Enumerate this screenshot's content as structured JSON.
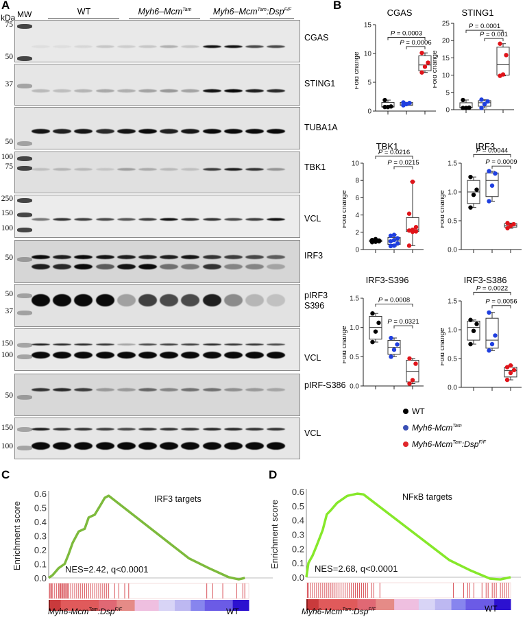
{
  "figure": {
    "panels": {
      "A": "A",
      "B": "B",
      "C": "C",
      "D": "D"
    }
  },
  "panel_a": {
    "kda_label": "kDa",
    "mw_label": "MW",
    "groups": [
      {
        "label": "WT",
        "italic": false,
        "sup": "",
        "suffix": "",
        "suffix_sup": ""
      },
      {
        "label": "Myh6–Mcm",
        "italic": true,
        "sup": "Tam",
        "suffix": "",
        "suffix_sup": ""
      },
      {
        "label": "Myh6–Mcm",
        "italic": true,
        "sup": "Tam",
        "suffix": ":Dsp",
        "suffix_sup": "F/F"
      }
    ],
    "blots": [
      {
        "protein": "CGAS",
        "markers": [
          "75",
          "50"
        ]
      },
      {
        "protein": "STING1",
        "markers": [
          "37"
        ]
      },
      {
        "protein": "TUBA1A",
        "markers": [
          "50"
        ]
      },
      {
        "protein": "TBK1",
        "markers": [
          "100",
          "75"
        ]
      },
      {
        "protein": "VCL",
        "markers": [
          "250",
          "150",
          "100"
        ]
      },
      {
        "protein": "IRF3",
        "markers": [
          "50"
        ]
      },
      {
        "protein": "pIRF3\nS396",
        "protein_line1": "pIRF3",
        "protein_line2": "S396",
        "markers": [
          "50",
          "37"
        ]
      },
      {
        "protein": "VCL",
        "markers": [
          "150",
          "100"
        ]
      },
      {
        "protein": "pIRF-S386",
        "markers": [
          "50"
        ]
      },
      {
        "protein": "VCL",
        "markers": [
          "150",
          "100"
        ]
      }
    ]
  },
  "legend": {
    "items": [
      {
        "label": "WT",
        "color": "#000000"
      },
      {
        "label": "Myh6-Mcm",
        "sup": "Tam",
        "color": "#3a4fb5"
      },
      {
        "label": "Myh6-Mcm",
        "sup": "Tam",
        "suffix": ":Dsp",
        "suffix_sup": "F/F",
        "color": "#e0262a"
      }
    ]
  },
  "gsea": {
    "C": {
      "title": "IRF3 targets",
      "stat": "NES=2.42, q<0.0001",
      "ylabel": "Enrichment score",
      "left_group": "Myh6-Mcm",
      "left_sup1": "Tam",
      "left_suffix": ":Dsp",
      "left_sup2": "F/F",
      "right_group": "WT"
    },
    "D": {
      "title": "NFκB targets",
      "stat": "NES=2.68, q<0.0001",
      "ylabel": "Enrichment score",
      "left_group": "Myh6-Mcm",
      "left_sup1": "Tam",
      "left_suffix": ":Dsp",
      "left_sup2": "F/F",
      "right_group": "WT"
    }
  },
  "colors": {
    "wt": "#000000",
    "mcm": "#1f3fe0",
    "dsp": "#e0141a",
    "gsea_c_curve": "#7dba3c",
    "gsea_d_curve": "#86e82a",
    "hit_line": "#d9545b"
  },
  "chart_data": [
    {
      "type": "box",
      "title": "CGAS",
      "ylabel": "Fold change",
      "ylim": [
        0,
        15
      ],
      "yticks": [
        0,
        5,
        10,
        15
      ],
      "categories": [
        "WT",
        "Myh6-Mcm Tam",
        "Myh6-Mcm Tam:Dsp F/F"
      ],
      "series": [
        {
          "name": "WT",
          "values": [
            0.7,
            0.7,
            0.8,
            1.9
          ],
          "box": {
            "min": 0.7,
            "q1": 0.7,
            "median": 0.75,
            "q3": 1.5,
            "max": 1.9
          }
        },
        {
          "name": "Myh6-Mcm Tam",
          "values": [
            1.0,
            1.2,
            1.4,
            1.5
          ],
          "box": {
            "min": 1.0,
            "q1": 1.0,
            "median": 1.2,
            "q3": 1.5,
            "max": 1.5
          }
        },
        {
          "name": "Myh6-Mcm Tam:Dsp F/F",
          "values": [
            6.7,
            7.7,
            8.4,
            10.1
          ],
          "box": {
            "min": 6.7,
            "q1": 7.0,
            "median": 8.0,
            "q3": 9.6,
            "max": 10.1
          }
        }
      ],
      "annotations": [
        {
          "label": "P = 0.0003",
          "from": 0,
          "to": 2,
          "y": 12.8
        },
        {
          "label": "P = 0.0006",
          "from": 1,
          "to": 2,
          "y": 11.2
        }
      ]
    },
    {
      "type": "box",
      "title": "STING1",
      "ylabel": "Fold change",
      "ylim": [
        0,
        25
      ],
      "yticks": [
        0,
        5,
        10,
        15,
        20,
        25
      ],
      "categories": [
        "WT",
        "Myh6-Mcm Tam",
        "Myh6-Mcm Tam:Dsp F/F"
      ],
      "series": [
        {
          "name": "WT",
          "values": [
            0.5,
            0.5,
            0.6,
            2.8
          ],
          "box": {
            "min": 0.5,
            "q1": 0.5,
            "median": 0.6,
            "q3": 2.0,
            "max": 2.8
          }
        },
        {
          "name": "Myh6-Mcm Tam",
          "values": [
            0.5,
            1.6,
            2.4,
            2.9
          ],
          "box": {
            "min": 0.5,
            "q1": 1.0,
            "median": 2.0,
            "q3": 2.6,
            "max": 2.9
          }
        },
        {
          "name": "Myh6-Mcm Tam:Dsp F/F",
          "values": [
            9.8,
            10.2,
            15.8,
            19.1
          ],
          "box": {
            "min": 9.8,
            "q1": 10.0,
            "median": 13.0,
            "q3": 18.1,
            "max": 19.1
          }
        }
      ],
      "annotations": [
        {
          "label": "P = 0.0001",
          "from": 0,
          "to": 2,
          "y": 23.0
        },
        {
          "label": "P = 0.001",
          "from": 1,
          "to": 2,
          "y": 20.6
        }
      ]
    },
    {
      "type": "box",
      "title": "TBK1",
      "ylabel": "Fold change",
      "ylim": [
        0,
        10
      ],
      "yticks": [
        0,
        2,
        4,
        6,
        8,
        10
      ],
      "categories": [
        "WT",
        "Myh6-Mcm Tam",
        "Myh6-Mcm Tam:Dsp F/F"
      ],
      "series": [
        {
          "name": "WT",
          "values": [
            0.85,
            0.9,
            0.95,
            1.0,
            1.0,
            1.05,
            1.1,
            1.2
          ],
          "box": {
            "min": 0.85,
            "q1": 0.9,
            "median": 1.0,
            "q3": 1.1,
            "max": 1.2
          }
        },
        {
          "name": "Myh6-Mcm Tam",
          "values": [
            0.4,
            0.45,
            0.7,
            0.95,
            1.1,
            1.3,
            1.6,
            1.7
          ],
          "box": {
            "min": 0.4,
            "q1": 0.6,
            "median": 1.0,
            "q3": 1.4,
            "max": 1.7
          }
        },
        {
          "name": "Myh6-Mcm Tam:Dsp F/F",
          "values": [
            0.45,
            2.05,
            2.1,
            2.2,
            2.3,
            2.6,
            4.15,
            7.85
          ],
          "box": {
            "min": 0.45,
            "q1": 2.1,
            "median": 2.3,
            "q3": 3.7,
            "max": 7.85
          }
        }
      ],
      "annotations": [
        {
          "label": "P = 0.0216",
          "from": 0,
          "to": 2,
          "y": 10.8
        },
        {
          "label": "P = 0.0215",
          "from": 1,
          "to": 2,
          "y": 9.6
        }
      ]
    },
    {
      "type": "box",
      "title": "IRF3",
      "ylabel": "Fold change",
      "ylim": [
        0,
        1.5
      ],
      "yticks": [
        0.0,
        0.5,
        1.0,
        1.5
      ],
      "categories": [
        "WT",
        "Myh6-Mcm Tam",
        "Myh6-Mcm Tam:Dsp F/F"
      ],
      "series": [
        {
          "name": "WT",
          "values": [
            0.73,
            0.95,
            1.04,
            1.26
          ],
          "box": {
            "min": 0.73,
            "q1": 0.8,
            "median": 1.0,
            "q3": 1.2,
            "max": 1.26
          }
        },
        {
          "name": "Myh6-Mcm Tam",
          "values": [
            0.84,
            1.11,
            1.32,
            1.36
          ],
          "box": {
            "min": 0.84,
            "q1": 0.92,
            "median": 1.2,
            "q3": 1.33,
            "max": 1.36
          }
        },
        {
          "name": "Myh6-Mcm Tam:Dsp F/F",
          "values": [
            0.37,
            0.41,
            0.44,
            0.46
          ],
          "box": {
            "min": 0.37,
            "q1": 0.39,
            "median": 0.42,
            "q3": 0.45,
            "max": 0.46
          }
        }
      ],
      "annotations": [
        {
          "label": "P = 0.0044",
          "from": 0,
          "to": 2,
          "y": 1.65
        },
        {
          "label": "P = 0.0009",
          "from": 1,
          "to": 2,
          "y": 1.45
        }
      ]
    },
    {
      "type": "box",
      "title": "IRF3-S396",
      "ylabel": "Fold change",
      "ylim": [
        0,
        1.5
      ],
      "yticks": [
        0.0,
        0.5,
        1.0,
        1.5
      ],
      "categories": [
        "WT",
        "Myh6-Mcm Tam",
        "Myh6-Mcm Tam:Dsp F/F"
      ],
      "series": [
        {
          "name": "WT",
          "values": [
            0.75,
            0.93,
            1.08,
            1.24
          ],
          "box": {
            "min": 0.75,
            "q1": 0.8,
            "median": 1.0,
            "q3": 1.19,
            "max": 1.24
          }
        },
        {
          "name": "Myh6-Mcm Tam",
          "values": [
            0.5,
            0.62,
            0.71,
            0.82
          ],
          "box": {
            "min": 0.5,
            "q1": 0.54,
            "median": 0.66,
            "q3": 0.78,
            "max": 0.82
          }
        },
        {
          "name": "Myh6-Mcm Tam:Dsp F/F",
          "values": [
            0.04,
            0.1,
            0.38,
            0.47
          ],
          "box": {
            "min": 0.04,
            "q1": 0.07,
            "median": 0.25,
            "q3": 0.44,
            "max": 0.47
          }
        }
      ],
      "annotations": [
        {
          "label": "P = 0.0008",
          "from": 0,
          "to": 2,
          "y": 1.4
        },
        {
          "label": "P = 0.0321",
          "from": 1,
          "to": 2,
          "y": 1.03
        }
      ]
    },
    {
      "type": "box",
      "title": "IRF3-S386",
      "ylabel": "Fold change",
      "ylim": [
        0,
        1.5
      ],
      "yticks": [
        0.0,
        0.5,
        1.0,
        1.5
      ],
      "categories": [
        "WT",
        "Myh6-Mcm Tam",
        "Myh6-Mcm Tam:Dsp F/F"
      ],
      "series": [
        {
          "name": "WT",
          "values": [
            0.75,
            0.98,
            1.1,
            1.17
          ],
          "box": {
            "min": 0.75,
            "q1": 0.82,
            "median": 1.04,
            "q3": 1.15,
            "max": 1.17
          }
        },
        {
          "name": "Myh6-Mcm Tam",
          "values": [
            0.64,
            0.75,
            0.9,
            1.3
          ],
          "box": {
            "min": 0.64,
            "q1": 0.68,
            "median": 0.82,
            "q3": 1.2,
            "max": 1.3
          }
        },
        {
          "name": "Myh6-Mcm Tam:Dsp F/F",
          "values": [
            0.13,
            0.25,
            0.3,
            0.35,
            0.38
          ],
          "box": {
            "min": 0.13,
            "q1": 0.18,
            "median": 0.29,
            "q3": 0.35,
            "max": 0.38
          }
        }
      ],
      "annotations": [
        {
          "label": "P = 0.0022",
          "from": 0,
          "to": 2,
          "y": 1.65
        },
        {
          "label": "P = 0.0056",
          "from": 1,
          "to": 2,
          "y": 1.42
        }
      ]
    },
    {
      "type": "line",
      "title": "IRF3 targets",
      "annotation": "NES=2.42, q<0.0001",
      "ylabel": "Enrichment score",
      "ylim": [
        0,
        0.6
      ],
      "yticks": [
        0.0,
        0.1,
        0.2,
        0.3,
        0.4,
        0.5,
        0.6
      ],
      "x": [
        0,
        0.02,
        0.05,
        0.08,
        0.1,
        0.12,
        0.15,
        0.18,
        0.2,
        0.23,
        0.26,
        0.28,
        0.3,
        0.7,
        0.8,
        0.9,
        0.95,
        0.98
      ],
      "values": [
        0.0,
        0.02,
        0.07,
        0.1,
        0.17,
        0.25,
        0.33,
        0.35,
        0.43,
        0.45,
        0.52,
        0.57,
        0.585,
        0.14,
        0.07,
        0.005,
        -0.01,
        0.0
      ],
      "gradient_labels": [
        "Myh6-Mcm Tam:Dsp F/F",
        "WT"
      ]
    },
    {
      "type": "line",
      "title": "NFκB targets",
      "annotation": "NES=2.68, q<0.0001",
      "ylabel": "Enrichment score",
      "ylim": [
        0,
        0.6
      ],
      "yticks": [
        0.0,
        0.1,
        0.2,
        0.3,
        0.4,
        0.5,
        0.6
      ],
      "x": [
        0,
        0.01,
        0.03,
        0.05,
        0.08,
        0.1,
        0.12,
        0.15,
        0.2,
        0.25,
        0.28,
        0.7,
        0.8,
        0.9,
        0.95,
        1.0
      ],
      "values": [
        0.0,
        0.1,
        0.15,
        0.22,
        0.33,
        0.44,
        0.47,
        0.52,
        0.57,
        0.585,
        0.58,
        0.12,
        0.05,
        -0.01,
        -0.015,
        0.0
      ],
      "gradient_labels": [
        "Myh6-Mcm Tam:Dsp F/F",
        "WT"
      ]
    }
  ]
}
